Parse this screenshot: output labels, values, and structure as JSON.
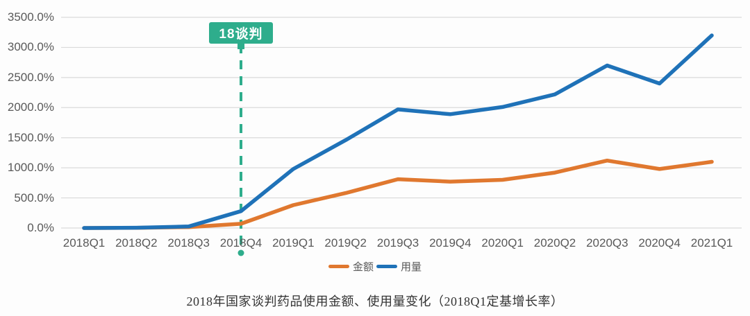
{
  "colors": {
    "background": "#fdfdfd",
    "gridline": "#dadada",
    "axis_text": "#595959"
  },
  "chart_data": {
    "type": "line",
    "title": "2018年国家谈判药品使用金额、使用量变化（2018Q1定基增长率）",
    "categories": [
      "2018Q1",
      "2018Q2",
      "2018Q3",
      "2018Q4",
      "2019Q1",
      "2019Q2",
      "2019Q3",
      "2019Q4",
      "2020Q1",
      "2020Q2",
      "2020Q3",
      "2020Q4",
      "2021Q1"
    ],
    "series": [
      {
        "name": "金额",
        "color": "#E0782F",
        "values": [
          0,
          3,
          15,
          70,
          380,
          580,
          810,
          770,
          800,
          920,
          1120,
          980,
          1100
        ]
      },
      {
        "name": "用量",
        "color": "#1F72B8",
        "values": [
          0,
          5,
          25,
          280,
          980,
          1460,
          1970,
          1890,
          2010,
          2220,
          2700,
          2400,
          3200
        ]
      }
    ],
    "ylim": [
      0,
      3500
    ],
    "ytick_step": 500,
    "ytick_labels": [
      "3500.0%",
      "3000.0%",
      "2500.0%",
      "2000.0%",
      "1500.0%",
      "1000.0%",
      "500.0%",
      "0.0%"
    ],
    "grid": true,
    "legend_position": "bottom-center",
    "annotation": {
      "label": "18谈判",
      "at_category": "2018Q4",
      "color": "#2EAD8C",
      "text_color": "#FFFFFF"
    }
  }
}
